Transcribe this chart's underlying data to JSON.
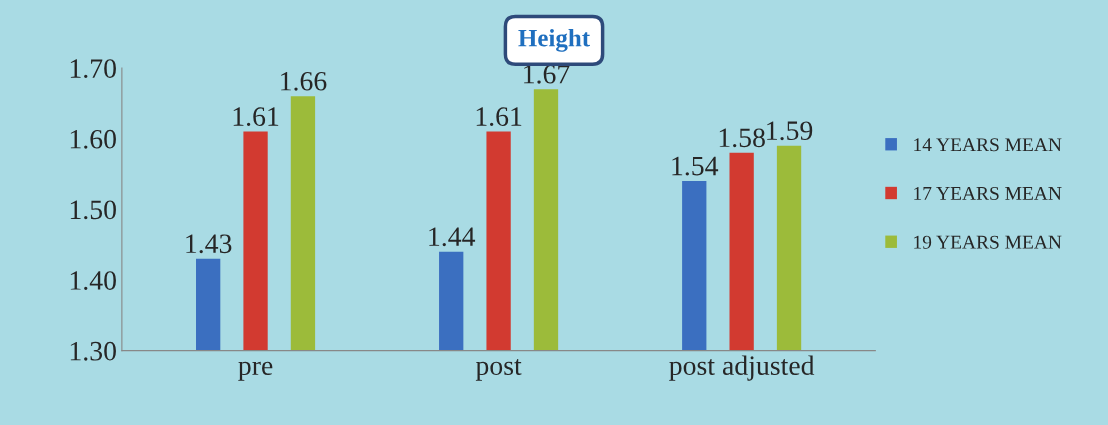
{
  "chart_data": {
    "type": "bar",
    "title": "Height",
    "categories": [
      "pre",
      "post",
      "post adjusted"
    ],
    "series": [
      {
        "name": "14 YEARS MEAN",
        "color": "#3b6fc0",
        "values": [
          1.43,
          1.44,
          1.54
        ]
      },
      {
        "name": "17 YEARS MEAN",
        "color": "#d23a30",
        "values": [
          1.61,
          1.61,
          1.58
        ]
      },
      {
        "name": "19 YEARS MEAN",
        "color": "#9cbb3a",
        "values": [
          1.66,
          1.67,
          1.59
        ]
      }
    ],
    "ylim": [
      1.3,
      1.7
    ],
    "yticks": [
      {
        "value": 1.3,
        "label": "1.30"
      },
      {
        "value": 1.4,
        "label": "1.40"
      },
      {
        "value": 1.5,
        "label": "1.50"
      },
      {
        "value": 1.6,
        "label": "1.60"
      },
      {
        "value": 1.7,
        "label": "1.70"
      }
    ],
    "data_labels": true,
    "grid": false,
    "legend": "right"
  }
}
